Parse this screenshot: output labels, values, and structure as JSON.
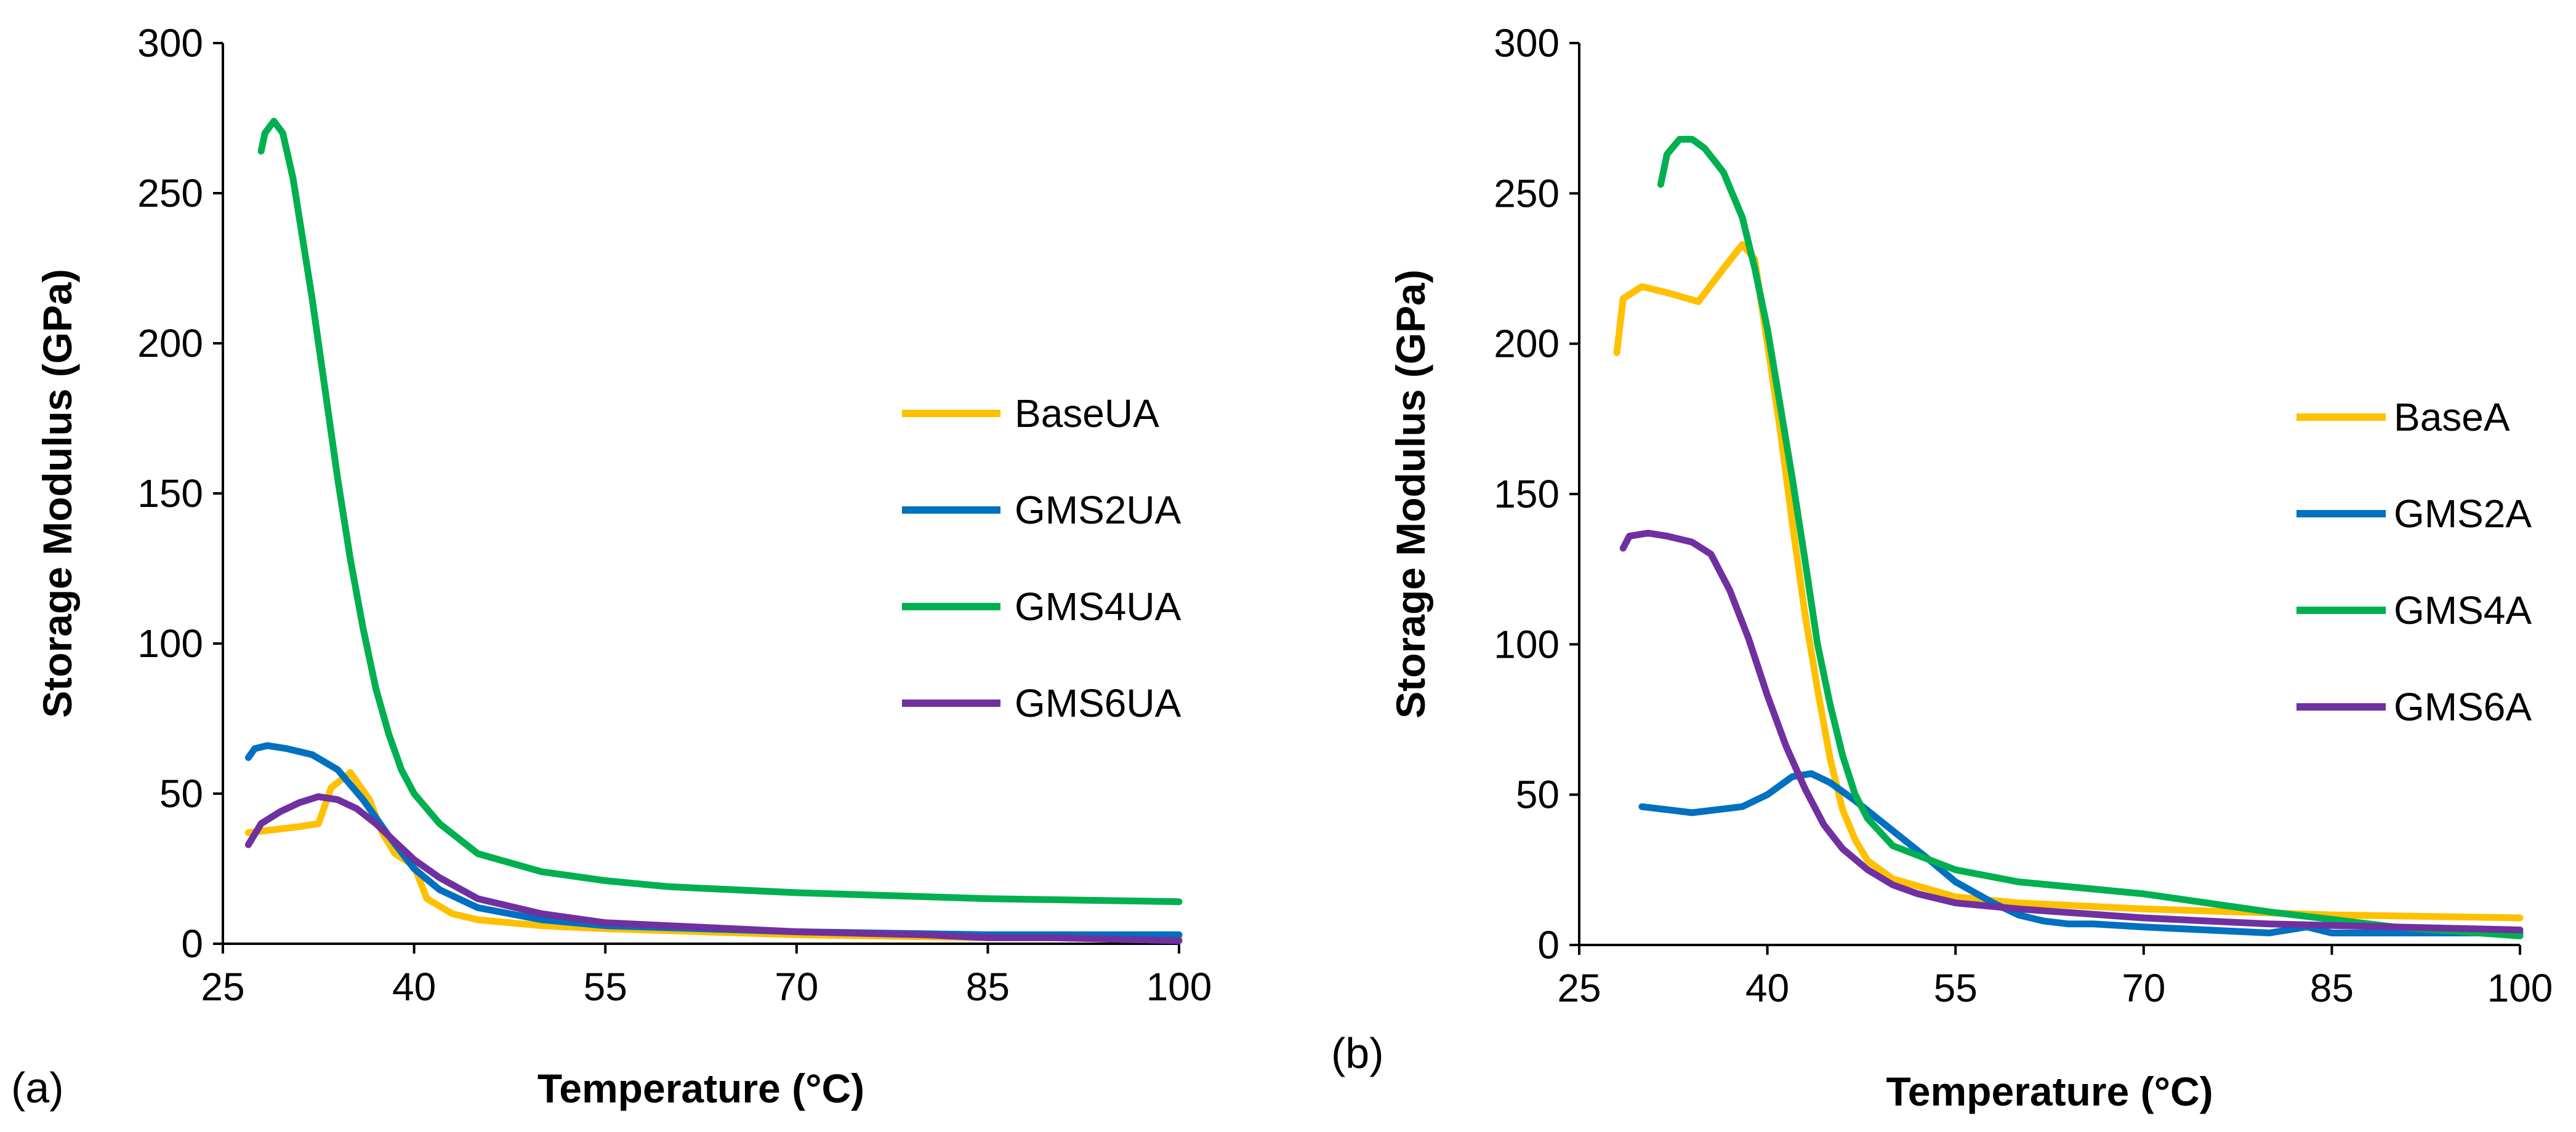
{
  "chart_data": [
    {
      "type": "line",
      "panel_label": "(a)",
      "xlabel": "Temperature (°C)",
      "ylabel": "Storage Modulus (GPa)",
      "xlim": [
        25,
        100
      ],
      "ylim": [
        0,
        300
      ],
      "xticks": [
        25,
        40,
        55,
        70,
        85,
        100
      ],
      "yticks": [
        0,
        50,
        100,
        150,
        200,
        250,
        300
      ],
      "legend_position": "right",
      "series": [
        {
          "name": "BaseUA",
          "color": "#FFC000",
          "x": [
            27,
            29,
            31,
            32.5,
            33.5,
            35,
            36.5,
            37.5,
            38.5,
            40,
            41,
            43,
            45,
            50,
            55,
            70,
            85,
            100
          ],
          "y": [
            37,
            38,
            39,
            40,
            52,
            57,
            48,
            37,
            30,
            26,
            15,
            10,
            8,
            6,
            5,
            3,
            2,
            2
          ]
        },
        {
          "name": "GMS2UA",
          "color": "#0070C0",
          "x": [
            27,
            27.5,
            28.5,
            30,
            32,
            34,
            36,
            38,
            40,
            42,
            45,
            50,
            55,
            70,
            85,
            100
          ],
          "y": [
            62,
            65,
            66,
            65,
            63,
            58,
            48,
            36,
            25,
            18,
            12,
            8,
            6,
            4,
            3,
            3
          ]
        },
        {
          "name": "GMS4UA",
          "color": "#00B050",
          "x": [
            28,
            28.3,
            29,
            29.7,
            30.5,
            32,
            33,
            34,
            35,
            36,
            37,
            38,
            39,
            40,
            42,
            45,
            50,
            55,
            60,
            70,
            85,
            100
          ],
          "y": [
            264,
            270,
            274,
            270,
            255,
            215,
            185,
            155,
            128,
            105,
            85,
            70,
            58,
            50,
            40,
            30,
            24,
            21,
            19,
            17,
            15,
            14
          ]
        },
        {
          "name": "GMS6UA",
          "color": "#7030A0",
          "x": [
            27,
            28,
            29.5,
            31,
            32.5,
            34,
            35.5,
            37,
            38.5,
            40,
            42,
            45,
            50,
            55,
            60,
            70,
            80,
            85,
            90,
            100
          ],
          "y": [
            33,
            40,
            44,
            47,
            49,
            48,
            45,
            40,
            34,
            28,
            22,
            15,
            10,
            7,
            6,
            4,
            3,
            2,
            2,
            1
          ]
        }
      ]
    },
    {
      "type": "line",
      "panel_label": "(b)",
      "xlabel": "Temperature (°C)",
      "ylabel": "Storage Modulus (GPa)",
      "xlim": [
        25,
        100
      ],
      "ylim": [
        0,
        300
      ],
      "xticks": [
        25,
        40,
        55,
        70,
        85,
        100
      ],
      "yticks": [
        0,
        50,
        100,
        150,
        200,
        250,
        300
      ],
      "legend_position": "right",
      "series": [
        {
          "name": "BaseA",
          "color": "#FFC000",
          "x": [
            28,
            28.5,
            30,
            32,
            34.5,
            36.5,
            38,
            39,
            40,
            41,
            42,
            43,
            44,
            45,
            46,
            47,
            48,
            50,
            55,
            60,
            70,
            85,
            100
          ],
          "y": [
            197,
            215,
            219,
            217,
            214,
            225,
            233,
            228,
            200,
            172,
            140,
            110,
            85,
            62,
            45,
            35,
            28,
            22,
            16,
            14,
            12,
            10,
            9
          ]
        },
        {
          "name": "GMS2A",
          "color": "#0070C0",
          "x": [
            30,
            32,
            34,
            36,
            38,
            40,
            42,
            43.5,
            45,
            47,
            50,
            53,
            55,
            58,
            60,
            62,
            64,
            66,
            70,
            75,
            80,
            83,
            85,
            90,
            100
          ],
          "y": [
            46,
            45,
            44,
            45,
            46,
            50,
            56,
            57,
            54,
            48,
            38,
            28,
            21,
            14,
            10,
            8,
            7,
            7,
            6,
            5,
            4,
            6,
            4,
            4,
            4
          ]
        },
        {
          "name": "GMS4A",
          "color": "#00B050",
          "x": [
            31.5,
            32,
            33,
            34,
            35,
            36.5,
            38,
            39,
            40,
            41,
            42,
            43,
            44,
            45,
            46,
            47,
            48,
            50,
            55,
            60,
            70,
            80,
            90,
            100
          ],
          "y": [
            253,
            263,
            268,
            268,
            265,
            257,
            242,
            225,
            205,
            180,
            155,
            128,
            100,
            80,
            63,
            50,
            42,
            33,
            25,
            21,
            17,
            11,
            6,
            3
          ]
        },
        {
          "name": "GMS6A",
          "color": "#7030A0",
          "x": [
            28.5,
            29,
            30.5,
            32,
            34,
            35.5,
            37,
            38.5,
            40,
            41.5,
            43,
            44.5,
            46,
            48,
            50,
            52,
            55,
            60,
            70,
            80,
            90,
            100
          ],
          "y": [
            132,
            136,
            137,
            136,
            134,
            130,
            118,
            102,
            83,
            66,
            52,
            40,
            32,
            25,
            20,
            17,
            14,
            12,
            9,
            7,
            6,
            5
          ]
        }
      ]
    }
  ]
}
